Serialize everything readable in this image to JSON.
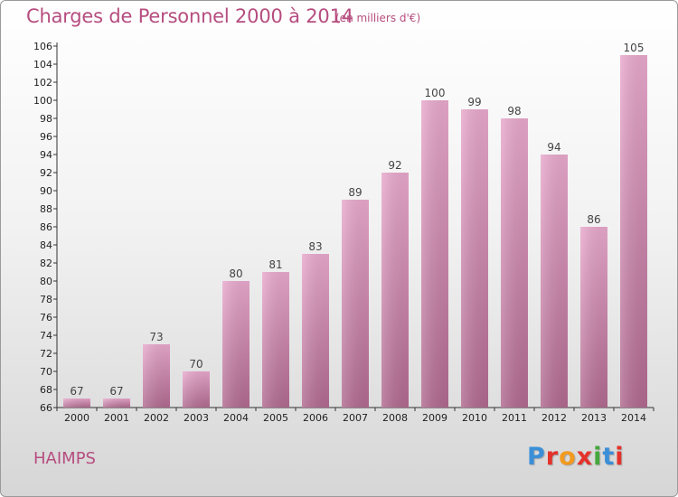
{
  "header": {
    "title": "Charges de Personnel 2000 à 2014",
    "subtitle": "(en milliers d'€)"
  },
  "footer": {
    "commune": "HAIMPS",
    "logo": "Proxiti"
  },
  "colors": {
    "bar_top": "#e8a8cc",
    "bar_bottom": "#b0698f",
    "title": "#b64d7f",
    "logo": [
      "#3a8fd8",
      "#e4322b",
      "#f39a1e",
      "#e4322b",
      "#45a83c",
      "#3a8fd8",
      "#e4322b"
    ]
  },
  "chart_data": {
    "type": "bar",
    "title": "Charges de Personnel 2000 à 2014",
    "xlabel": "",
    "ylabel": "",
    "categories": [
      "2000",
      "2001",
      "2002",
      "2003",
      "2004",
      "2005",
      "2006",
      "2007",
      "2008",
      "2009",
      "2010",
      "2011",
      "2012",
      "2013",
      "2014"
    ],
    "values": [
      67,
      67,
      73,
      70,
      80,
      81,
      83,
      89,
      92,
      100,
      99,
      98,
      94,
      86,
      105
    ],
    "ylim": [
      66,
      106
    ],
    "yticks": [
      66,
      68,
      70,
      72,
      74,
      76,
      78,
      80,
      82,
      84,
      86,
      88,
      90,
      92,
      94,
      96,
      98,
      100,
      102,
      104,
      106
    ],
    "grid": false
  }
}
